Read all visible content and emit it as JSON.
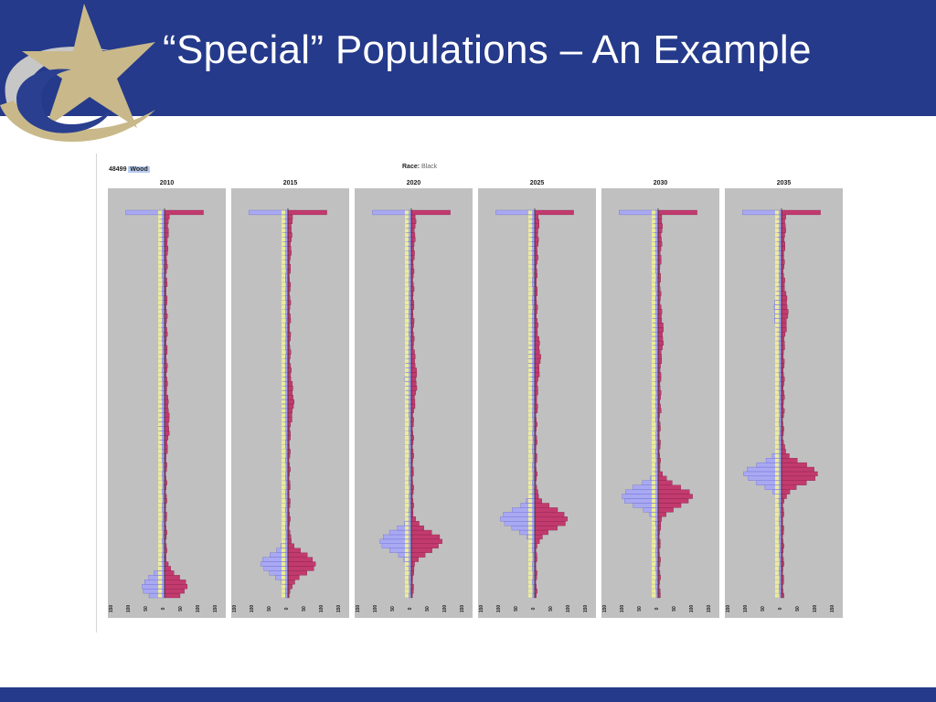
{
  "slide": {
    "title": "“Special” Populations – An Example"
  },
  "header": {
    "county_code": "48499",
    "county_name": "Wood",
    "race_label": "Race:",
    "race_value": "Black"
  },
  "colors": {
    "banner": "#253a8a",
    "panel_bg": "#c0c0c0",
    "male_bar": "#a9a9f2",
    "female_bar": "#c23a6e",
    "label_box": "#ecec9a"
  },
  "chart_data": [
    {
      "type": "population-pyramid",
      "title": "2010",
      "xticks": [
        "150",
        "100",
        "50",
        "0",
        "50",
        "100",
        "150"
      ],
      "xlim": [
        -150,
        150
      ],
      "peaks": [
        {
          "age": 83,
          "male": 60,
          "female": 60
        },
        {
          "age": 47,
          "male": 24,
          "female": 20
        }
      ],
      "oldest_group": {
        "male": 112,
        "female": 112
      }
    },
    {
      "type": "population-pyramid",
      "title": "2015",
      "xticks": [
        "150",
        "100",
        "50",
        "0",
        "50",
        "100",
        "150"
      ],
      "xlim": [
        -150,
        150
      ],
      "peaks": [
        {
          "age": 78,
          "male": 73,
          "female": 75
        },
        {
          "age": 42,
          "male": 26,
          "female": 23
        }
      ],
      "oldest_group": {
        "male": 112,
        "female": 112
      }
    },
    {
      "type": "population-pyramid",
      "title": "2020",
      "xticks": [
        "150",
        "100",
        "50",
        "0",
        "50",
        "100",
        "150"
      ],
      "xlim": [
        -150,
        150
      ],
      "peaks": [
        {
          "age": 73,
          "male": 86,
          "female": 83
        },
        {
          "age": 37,
          "male": 25,
          "female": 21
        }
      ],
      "oldest_group": {
        "male": 112,
        "female": 112
      }
    },
    {
      "type": "population-pyramid",
      "title": "2025",
      "xticks": [
        "150",
        "100",
        "50",
        "0",
        "50",
        "100",
        "150"
      ],
      "xlim": [
        -150,
        150
      ],
      "peaks": [
        {
          "age": 68,
          "male": 93,
          "female": 90
        },
        {
          "age": 32,
          "male": 27,
          "female": 23
        }
      ],
      "oldest_group": {
        "male": 112,
        "female": 112
      }
    },
    {
      "type": "population-pyramid",
      "title": "2030",
      "xticks": [
        "150",
        "100",
        "50",
        "0",
        "50",
        "100",
        "150"
      ],
      "xlim": [
        -150,
        150
      ],
      "peaks": [
        {
          "age": 63,
          "male": 100,
          "female": 93
        },
        {
          "age": 27,
          "male": 23,
          "female": 20
        }
      ],
      "oldest_group": {
        "male": 112,
        "female": 112
      }
    },
    {
      "type": "population-pyramid",
      "title": "2035",
      "xticks": [
        "150",
        "100",
        "50",
        "0",
        "50",
        "100",
        "150"
      ],
      "xlim": [
        -150,
        150
      ],
      "peaks": [
        {
          "age": 58,
          "male": 103,
          "female": 100
        },
        {
          "age": 22,
          "male": 36,
          "female": 29
        }
      ],
      "oldest_group": {
        "male": 112,
        "female": 112
      }
    }
  ]
}
